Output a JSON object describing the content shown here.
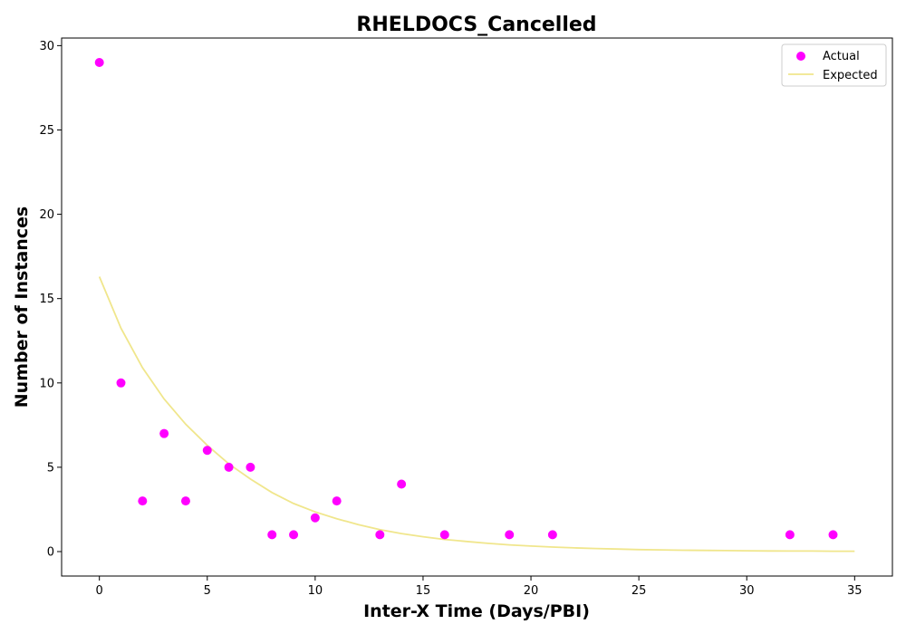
{
  "chart_data": {
    "type": "scatter",
    "title": "RHELDOCS_Cancelled",
    "xlabel": "Inter-X Time (Days/PBI)",
    "ylabel": "Number of Instances",
    "xlim": [
      -1.75,
      36.75
    ],
    "ylim": [
      -1.45,
      30.45
    ],
    "xticks": [
      0,
      5,
      10,
      15,
      20,
      25,
      30,
      35
    ],
    "yticks": [
      0,
      5,
      10,
      15,
      20,
      25,
      30
    ],
    "grid": false,
    "legend": {
      "position": "top-right",
      "entries": [
        "Actual",
        "Expected"
      ]
    },
    "series": [
      {
        "name": "Actual",
        "type": "scatter",
        "color": "#ff00ff",
        "x": [
          0,
          1,
          2,
          3,
          4,
          5,
          6,
          7,
          8,
          9,
          10,
          11,
          13,
          14,
          16,
          19,
          21,
          32,
          34
        ],
        "y": [
          29,
          10,
          3,
          7,
          3,
          6,
          5,
          5,
          1,
          1,
          2,
          3,
          1,
          4,
          1,
          1,
          1,
          1,
          1
        ]
      },
      {
        "name": "Expected",
        "type": "line",
        "color": "#f0e68c",
        "x": [
          0,
          1,
          2,
          3,
          4,
          5,
          6,
          7,
          8,
          9,
          10,
          11,
          12,
          13,
          14,
          15,
          16,
          17,
          18,
          19,
          20,
          21,
          22,
          23,
          24,
          25,
          26,
          27,
          28,
          29,
          30,
          31,
          32,
          33,
          34,
          35
        ],
        "y": [
          16.3,
          13.25,
          10.9,
          9.05,
          7.55,
          6.3,
          5.2,
          4.3,
          3.5,
          2.85,
          2.35,
          1.95,
          1.6,
          1.3,
          1.07,
          0.88,
          0.72,
          0.6,
          0.49,
          0.4,
          0.33,
          0.27,
          0.22,
          0.18,
          0.15,
          0.12,
          0.1,
          0.08,
          0.07,
          0.06,
          0.05,
          0.04,
          0.03,
          0.03,
          0.02,
          0.02
        ]
      }
    ]
  }
}
